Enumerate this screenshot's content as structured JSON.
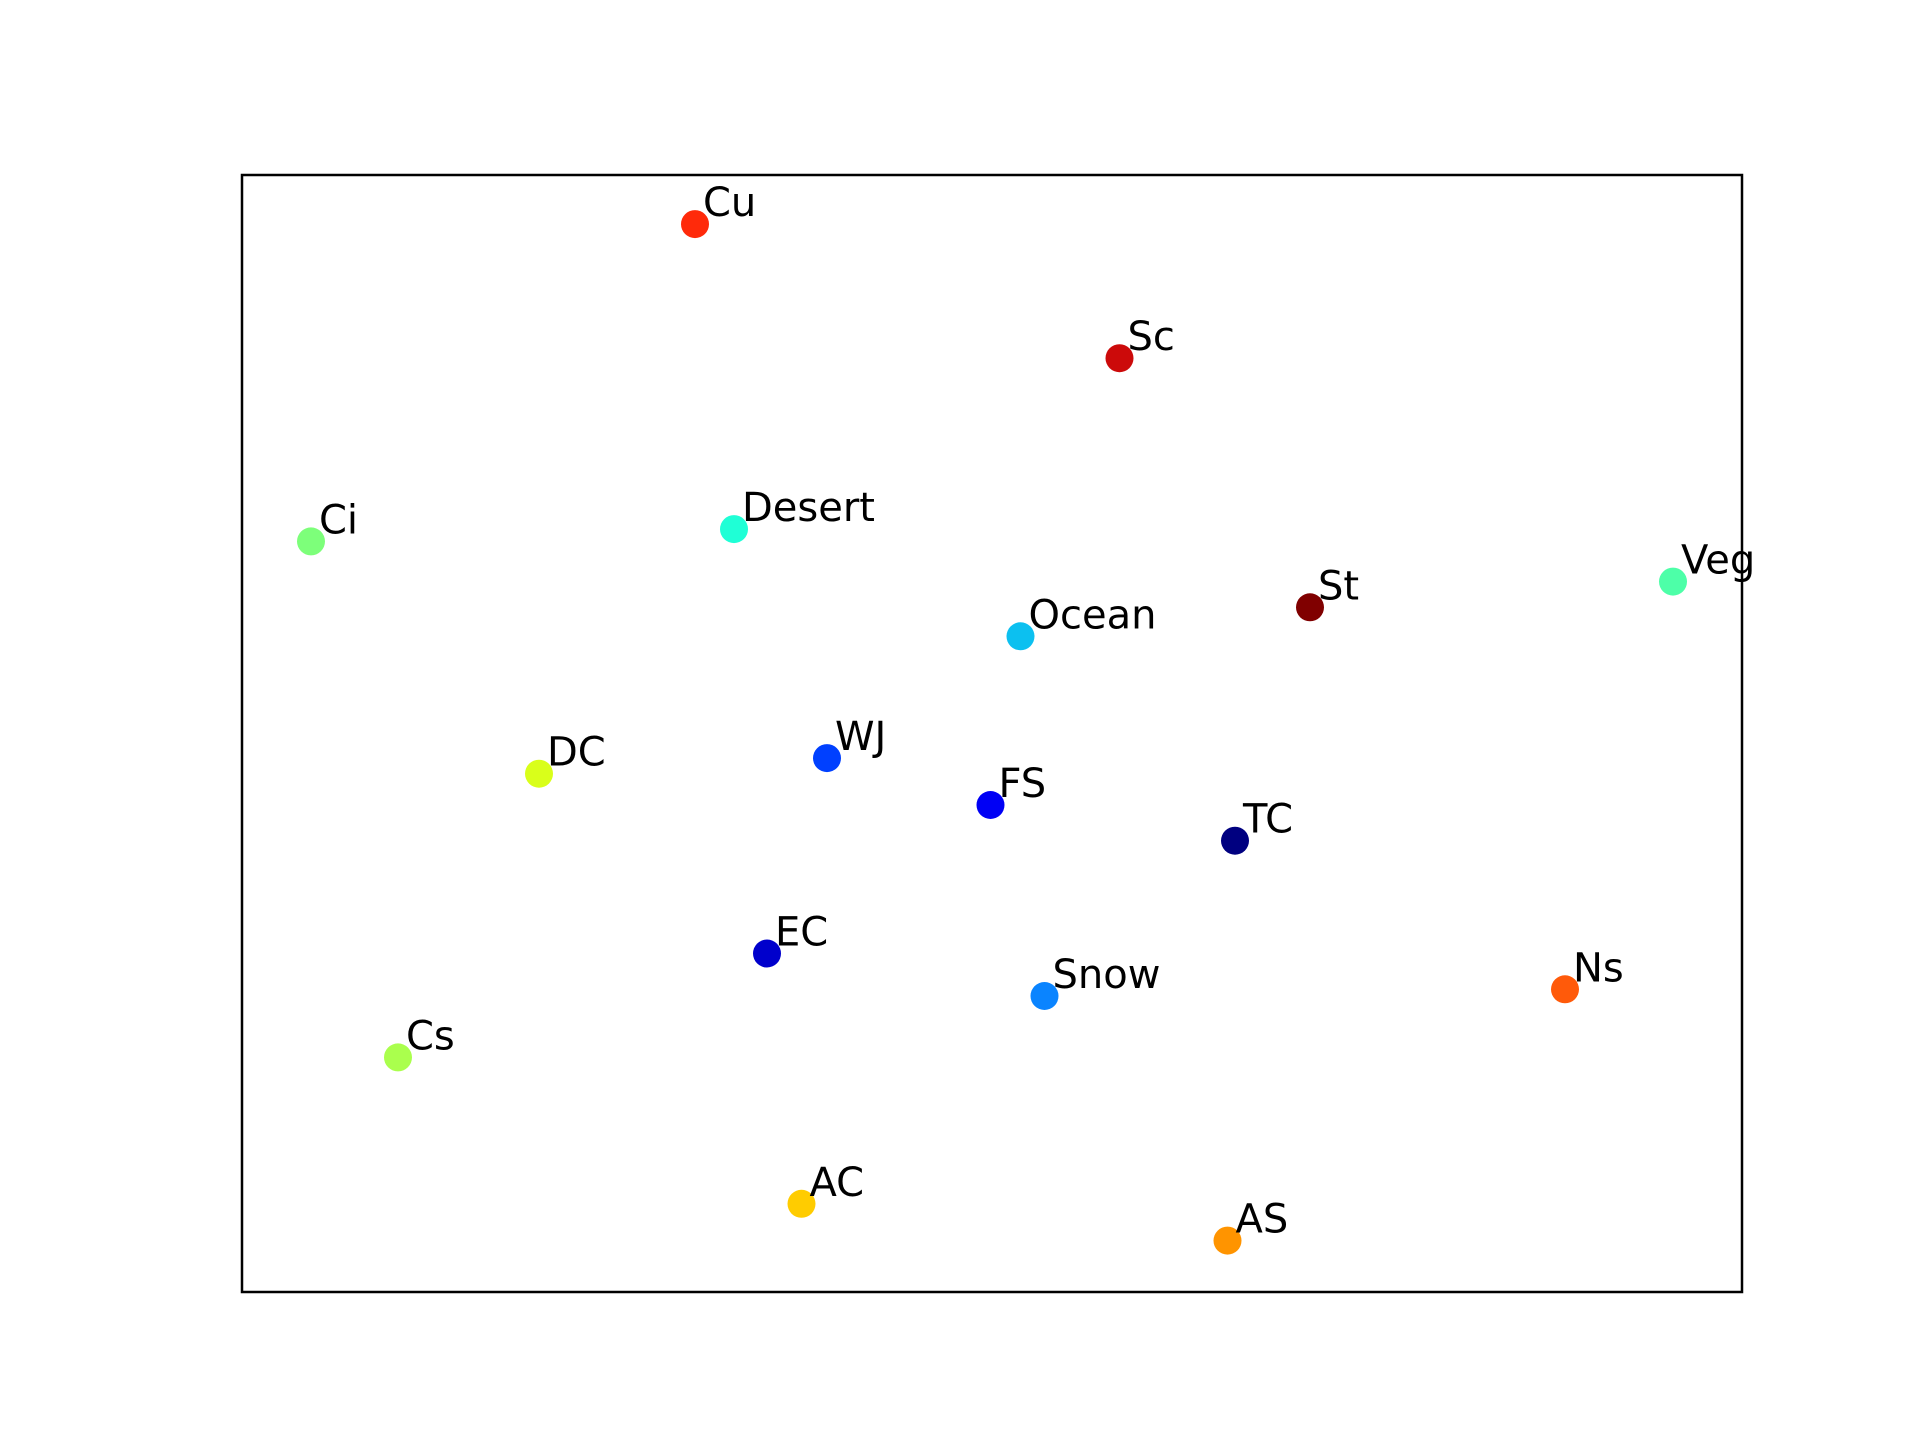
{
  "chart_data": {
    "type": "scatter",
    "xlim": [
      0,
      100
    ],
    "ylim": [
      0,
      100
    ],
    "grid": false,
    "axes_ticks": false,
    "points": [
      {
        "label": "Cu",
        "x": 30.2,
        "y": 95.6,
        "color": "#ff2a0a"
      },
      {
        "label": "Sc",
        "x": 58.5,
        "y": 83.6,
        "color": "#cc0a0a"
      },
      {
        "label": "Ci",
        "x": 4.6,
        "y": 67.2,
        "color": "#7dff7a"
      },
      {
        "label": "Desert",
        "x": 32.8,
        "y": 68.3,
        "color": "#1fffd6"
      },
      {
        "label": "St",
        "x": 71.2,
        "y": 61.3,
        "color": "#800000"
      },
      {
        "label": "Veg",
        "x": 95.4,
        "y": 63.6,
        "color": "#4dffa8"
      },
      {
        "label": "Ocean",
        "x": 51.9,
        "y": 58.7,
        "color": "#0cc0f0"
      },
      {
        "label": "DC",
        "x": 19.8,
        "y": 46.4,
        "color": "#d9ff1a"
      },
      {
        "label": "WJ",
        "x": 39.0,
        "y": 47.8,
        "color": "#0040ff"
      },
      {
        "label": "FS",
        "x": 49.9,
        "y": 43.6,
        "color": "#0000f5"
      },
      {
        "label": "TC",
        "x": 66.2,
        "y": 40.4,
        "color": "#000080"
      },
      {
        "label": "EC",
        "x": 35.0,
        "y": 30.3,
        "color": "#0000cc"
      },
      {
        "label": "Snow",
        "x": 53.5,
        "y": 26.5,
        "color": "#0a84ff"
      },
      {
        "label": "Ns",
        "x": 88.2,
        "y": 27.1,
        "color": "#ff5a0a"
      },
      {
        "label": "Cs",
        "x": 10.4,
        "y": 21.0,
        "color": "#aaff4d"
      },
      {
        "label": "AC",
        "x": 37.3,
        "y": 7.9,
        "color": "#ffcc00"
      },
      {
        "label": "AS",
        "x": 65.7,
        "y": 4.6,
        "color": "#ff9400"
      }
    ]
  }
}
